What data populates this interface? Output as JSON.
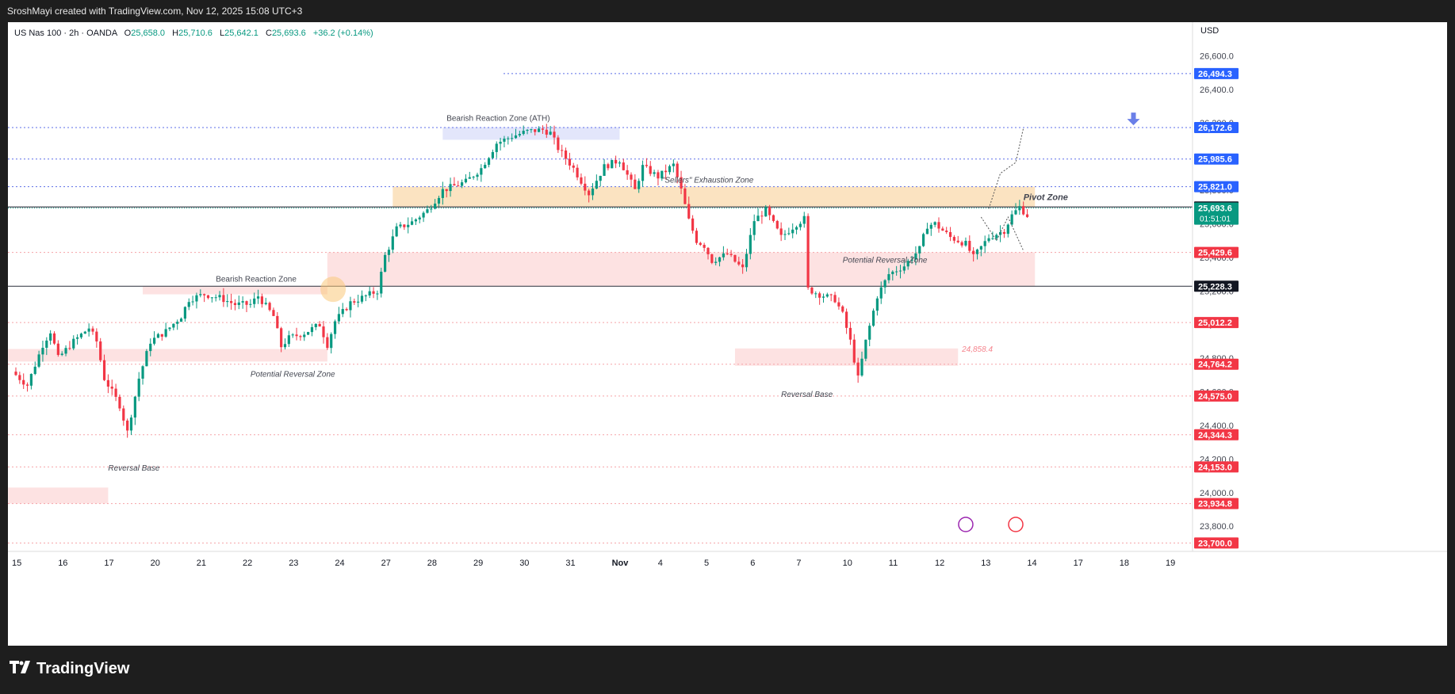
{
  "header": {
    "attribution": "SroshMayi created with TradingView.com, Nov 12, 2025 15:08 UTC+3"
  },
  "legend": {
    "symbol": "US Nas 100 · 2h · OANDA",
    "open_label": "O",
    "open": "25,658.0",
    "high_label": "H",
    "high": "25,710.6",
    "low_label": "L",
    "low": "25,642.1",
    "close_label": "C",
    "close": "25,693.6",
    "change": "+36.2 (+0.14%)"
  },
  "footer": {
    "brand": "TradingView",
    "logo_icon": "tradingview-logo-icon"
  },
  "colors": {
    "up": "#089981",
    "down": "#f23645",
    "blue_label": "#2962ff",
    "red_label": "#f23645",
    "black_label": "#131722",
    "pivot_zone": "#fbe3c1",
    "reaction_zone": "#fde2e2",
    "ath_zone": "#e3e6fb"
  },
  "chart_data": {
    "type": "candlestick",
    "currency": "USD",
    "ylim": [
      23650,
      26800
    ],
    "y_ticks": [
      26600,
      26400,
      26200,
      26000,
      25800,
      25600,
      25400,
      25200,
      25000,
      24800,
      24600,
      24400,
      24200,
      24000,
      23800
    ],
    "y_tick_labels": [
      "26,600.0",
      "26,400.0",
      "26,200.0",
      "26,000.0",
      "25,800.0",
      "25,600.0",
      "25,400.0",
      "25,200.0",
      "25,000.0",
      "24,800.0",
      "24,600.0",
      "24,400.0",
      "24,200.0",
      "24,000.0",
      "23,800.0"
    ],
    "x_ticks": [
      {
        "label": "15",
        "i": 0
      },
      {
        "label": "16",
        "i": 12
      },
      {
        "label": "17",
        "i": 24
      },
      {
        "label": "20",
        "i": 36
      },
      {
        "label": "21",
        "i": 48
      },
      {
        "label": "22",
        "i": 60
      },
      {
        "label": "23",
        "i": 72
      },
      {
        "label": "24",
        "i": 84
      },
      {
        "label": "27",
        "i": 96
      },
      {
        "label": "28",
        "i": 108
      },
      {
        "label": "29",
        "i": 120
      },
      {
        "label": "30",
        "i": 132
      },
      {
        "label": "31",
        "i": 144
      },
      {
        "label": "Nov",
        "i": 156
      },
      {
        "label": "4",
        "i": 168
      },
      {
        "label": "5",
        "i": 180
      },
      {
        "label": "6",
        "i": 192
      },
      {
        "label": "7",
        "i": 204
      },
      {
        "label": "10",
        "i": 216
      },
      {
        "label": "11",
        "i": 228
      },
      {
        "label": "12",
        "i": 240
      },
      {
        "label": "13",
        "i": 252
      },
      {
        "label": "14",
        "i": 264
      },
      {
        "label": "17",
        "i": 276
      },
      {
        "label": "18",
        "i": 288
      },
      {
        "label": "19",
        "i": 300
      }
    ],
    "anchors": [
      [
        0,
        24720
      ],
      [
        4,
        24640
      ],
      [
        8,
        24880
      ],
      [
        10,
        24960
      ],
      [
        12,
        24800
      ],
      [
        16,
        24900
      ],
      [
        20,
        24980
      ],
      [
        22,
        24900
      ],
      [
        24,
        24680
      ],
      [
        28,
        24520
      ],
      [
        30,
        24360
      ],
      [
        33,
        24680
      ],
      [
        36,
        24900
      ],
      [
        40,
        24960
      ],
      [
        44,
        25050
      ],
      [
        46,
        25150
      ],
      [
        50,
        25180
      ],
      [
        54,
        25160
      ],
      [
        58,
        25120
      ],
      [
        62,
        25120
      ],
      [
        64,
        25170
      ],
      [
        68,
        25050
      ],
      [
        70,
        24870
      ],
      [
        72,
        24920
      ],
      [
        76,
        24950
      ],
      [
        80,
        25000
      ],
      [
        82,
        24880
      ],
      [
        84,
        25020
      ],
      [
        88,
        25130
      ],
      [
        92,
        25170
      ],
      [
        95,
        25200
      ],
      [
        97,
        25410
      ],
      [
        98,
        25460
      ],
      [
        100,
        25570
      ],
      [
        104,
        25610
      ],
      [
        108,
        25680
      ],
      [
        112,
        25800
      ],
      [
        118,
        25850
      ],
      [
        122,
        25930
      ],
      [
        126,
        26080
      ],
      [
        130,
        26120
      ],
      [
        134,
        26150
      ],
      [
        138,
        26160
      ],
      [
        140,
        26140
      ],
      [
        142,
        26050
      ],
      [
        146,
        25930
      ],
      [
        150,
        25780
      ],
      [
        154,
        25940
      ],
      [
        158,
        25980
      ],
      [
        162,
        25800
      ],
      [
        164,
        25940
      ],
      [
        168,
        25880
      ],
      [
        172,
        25950
      ],
      [
        174,
        25800
      ],
      [
        176,
        25620
      ],
      [
        178,
        25500
      ],
      [
        180,
        25470
      ],
      [
        182,
        25380
      ],
      [
        186,
        25420
      ],
      [
        190,
        25330
      ],
      [
        193,
        25620
      ],
      [
        196,
        25680
      ],
      [
        200,
        25520
      ],
      [
        204,
        25600
      ],
      [
        206,
        25630
      ],
      [
        207,
        25210
      ],
      [
        210,
        25180
      ],
      [
        214,
        25150
      ],
      [
        216,
        25060
      ],
      [
        218,
        24900
      ],
      [
        220,
        24680
      ],
      [
        222,
        24900
      ],
      [
        225,
        25170
      ],
      [
        228,
        25300
      ],
      [
        232,
        25350
      ],
      [
        236,
        25450
      ],
      [
        238,
        25590
      ],
      [
        240,
        25600
      ],
      [
        244,
        25520
      ],
      [
        248,
        25480
      ],
      [
        250,
        25400
      ],
      [
        254,
        25520
      ],
      [
        258,
        25560
      ],
      [
        260,
        25650
      ],
      [
        262,
        25700
      ],
      [
        264,
        25650
      ]
    ],
    "horizontal_levels": [
      {
        "value": 26494.3,
        "label": "26,494.3",
        "tag": "blue"
      },
      {
        "value": 26172.6,
        "label": "26,172.6",
        "tag": "blue"
      },
      {
        "value": 25985.6,
        "label": "25,985.6",
        "tag": "blue"
      },
      {
        "value": 25821.0,
        "label": "25,821.0",
        "tag": "blue"
      },
      {
        "value": 25700.0,
        "label": "25,700.0",
        "tag": "black"
      },
      {
        "value": 25693.6,
        "label": "25,693.6",
        "tag": "price",
        "countdown": "01:51:01"
      },
      {
        "value": 25429.6,
        "label": "25,429.6",
        "tag": "red"
      },
      {
        "value": 25228.3,
        "label": "25,228.3",
        "tag": "black"
      },
      {
        "value": 25012.2,
        "label": "25,012.2",
        "tag": "red"
      },
      {
        "value": 24764.2,
        "label": "24,764.2",
        "tag": "red"
      },
      {
        "value": 24575.0,
        "label": "24,575.0",
        "tag": "red"
      },
      {
        "value": 24344.3,
        "label": "24,344.3",
        "tag": "red"
      },
      {
        "value": 24153.0,
        "label": "24,153.0",
        "tag": "red"
      },
      {
        "value": 23934.8,
        "label": "23,934.8",
        "tag": "red"
      },
      {
        "value": 23700.0,
        "label": "23,700.0",
        "tag": "red"
      }
    ],
    "zones": [
      {
        "label": "Bearish Reaction Zone (ATH)",
        "i1": 111,
        "i2": 157,
        "y1": 26175,
        "y2": 26100,
        "kind": "ath"
      },
      {
        "label": "Pivot Zone",
        "i1": 98,
        "i2": 265,
        "y1": 25821,
        "y2": 25700,
        "kind": "pivot"
      },
      {
        "label": "\"Sellers\" Exhaustion Zone",
        "i1": 98,
        "i2": 265,
        "y1": 25821,
        "y2": 25821,
        "kind": "none"
      },
      {
        "label": "Potential Reversal Zone",
        "i1": 81,
        "i2": 265,
        "y1": 25430,
        "y2": 25228,
        "kind": "reaction"
      },
      {
        "label": "Bearish Reaction Zone",
        "i1": 33,
        "i2": 81,
        "y1": 25228,
        "y2": 25180,
        "kind": "reaction"
      },
      {
        "label": "Potential Reversal Zone",
        "i1": -2,
        "i2": 81,
        "y1": 24855,
        "y2": 24780,
        "kind": "reaction"
      },
      {
        "label": "Reversal Base",
        "i1": 187,
        "i2": 245,
        "y1": 24858,
        "y2": 24755,
        "kind": "reaction"
      },
      {
        "label": "Reversal Base",
        "i1": -2,
        "i2": 24,
        "y1": 24030,
        "y2": 23935,
        "kind": "reaction"
      }
    ],
    "zone_price_note": "24,858.4",
    "currency_label": "USD"
  }
}
